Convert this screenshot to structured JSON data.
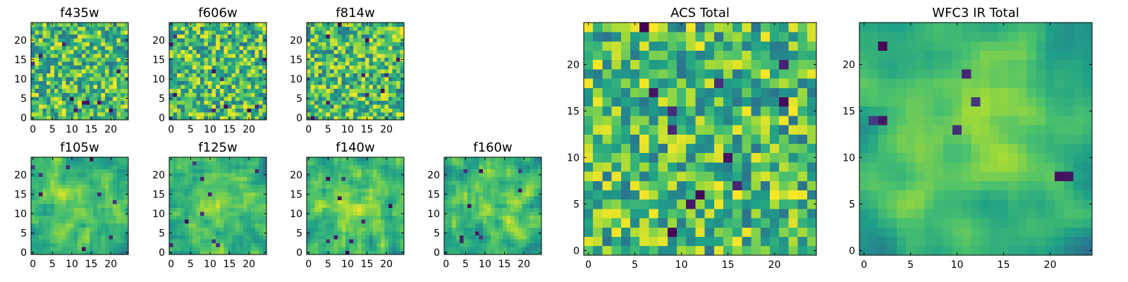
{
  "figure": {
    "background": "#ffffff"
  },
  "colormap": {
    "name": "viridis",
    "stops": [
      "#440154",
      "#46327e",
      "#365c8d",
      "#277f8e",
      "#1fa187",
      "#4ac16d",
      "#a0da39",
      "#fde725"
    ]
  },
  "chart_data": [
    {
      "id": "f435w",
      "type": "heatmap",
      "title": "f435w",
      "grid": [
        25,
        25
      ],
      "xlim": [
        0,
        25
      ],
      "ylim": [
        0,
        25
      ],
      "xticks": [
        0,
        5,
        10,
        15,
        20
      ],
      "yticks": [
        0,
        5,
        10,
        15,
        20
      ],
      "seed": 11,
      "smooth": 0,
      "centrality": 0,
      "dark_spots": 10
    },
    {
      "id": "f606w",
      "type": "heatmap",
      "title": "f606w",
      "grid": [
        25,
        25
      ],
      "xlim": [
        0,
        25
      ],
      "ylim": [
        0,
        25
      ],
      "xticks": [
        0,
        5,
        10,
        15,
        20
      ],
      "yticks": [
        0,
        5,
        10,
        15,
        20
      ],
      "seed": 23,
      "smooth": 0,
      "centrality": 0,
      "dark_spots": 10
    },
    {
      "id": "f814w",
      "type": "heatmap",
      "title": "f814w",
      "grid": [
        25,
        25
      ],
      "xlim": [
        0,
        25
      ],
      "ylim": [
        0,
        25
      ],
      "xticks": [
        0,
        5,
        10,
        15,
        20
      ],
      "yticks": [
        0,
        5,
        10,
        15,
        20
      ],
      "seed": 37,
      "smooth": 0,
      "centrality": 0,
      "dark_spots": 10
    },
    {
      "id": "f105w",
      "type": "heatmap",
      "title": "f105w",
      "grid": [
        25,
        25
      ],
      "xlim": [
        0,
        25
      ],
      "ylim": [
        0,
        25
      ],
      "xticks": [
        0,
        5,
        10,
        15,
        20
      ],
      "yticks": [
        0,
        5,
        10,
        15,
        20
      ],
      "seed": 41,
      "smooth": 1,
      "centrality": 0.3,
      "dark_spots": 9
    },
    {
      "id": "f125w",
      "type": "heatmap",
      "title": "f125w",
      "grid": [
        25,
        25
      ],
      "xlim": [
        0,
        25
      ],
      "ylim": [
        0,
        25
      ],
      "xticks": [
        0,
        5,
        10,
        15,
        20
      ],
      "yticks": [
        0,
        5,
        10,
        15,
        20
      ],
      "seed": 53,
      "smooth": 1,
      "centrality": 0.3,
      "dark_spots": 9
    },
    {
      "id": "f140w",
      "type": "heatmap",
      "title": "f140w",
      "grid": [
        25,
        25
      ],
      "xlim": [
        0,
        25
      ],
      "ylim": [
        0,
        25
      ],
      "xticks": [
        0,
        5,
        10,
        15,
        20
      ],
      "yticks": [
        0,
        5,
        10,
        15,
        20
      ],
      "seed": 67,
      "smooth": 1,
      "centrality": 0.3,
      "dark_spots": 9
    },
    {
      "id": "f160w",
      "type": "heatmap",
      "title": "f160w",
      "grid": [
        25,
        25
      ],
      "xlim": [
        0,
        25
      ],
      "ylim": [
        0,
        25
      ],
      "xticks": [
        0,
        5,
        10,
        15,
        20
      ],
      "yticks": [
        0,
        5,
        10,
        15,
        20
      ],
      "seed": 79,
      "smooth": 1,
      "centrality": 0.3,
      "dark_spots": 9
    },
    {
      "id": "acs-total",
      "type": "heatmap",
      "title": "ACS Total",
      "grid": [
        25,
        25
      ],
      "xlim": [
        0,
        25
      ],
      "ylim": [
        0,
        25
      ],
      "xticks": [
        0,
        5,
        10,
        15,
        20
      ],
      "yticks": [
        0,
        5,
        10,
        15,
        20
      ],
      "seed": 97,
      "smooth": 0,
      "centrality": 0,
      "dark_spots": 12
    },
    {
      "id": "wfc3-ir-total",
      "type": "heatmap",
      "title": "WFC3 IR Total",
      "grid": [
        25,
        25
      ],
      "xlim": [
        0,
        25
      ],
      "ylim": [
        0,
        25
      ],
      "xticks": [
        0,
        5,
        10,
        15,
        20
      ],
      "yticks": [
        0,
        5,
        10,
        15,
        20
      ],
      "seed": 131,
      "smooth": 2,
      "centrality": 0.5,
      "dark_spots": 8
    }
  ]
}
